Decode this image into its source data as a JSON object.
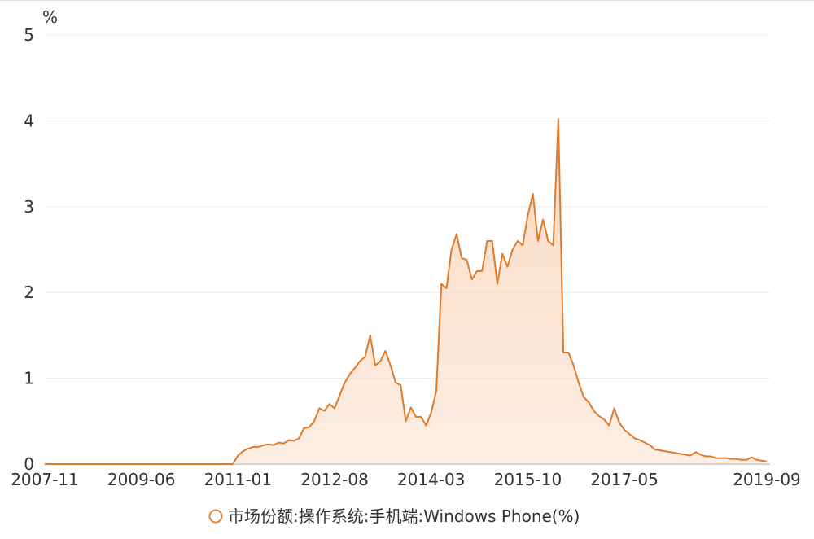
{
  "chart_data": {
    "type": "area",
    "y_unit": "%",
    "categories": [
      "2007-11",
      null,
      null,
      null,
      null,
      null,
      null,
      null,
      null,
      null,
      null,
      null,
      null,
      null,
      null,
      null,
      null,
      null,
      null,
      "2009-06",
      null,
      null,
      null,
      null,
      null,
      null,
      null,
      null,
      null,
      null,
      null,
      null,
      null,
      null,
      null,
      null,
      null,
      null,
      "2011-01",
      null,
      null,
      null,
      null,
      null,
      null,
      null,
      null,
      null,
      null,
      null,
      null,
      null,
      null,
      null,
      null,
      null,
      null,
      "2012-08",
      null,
      null,
      null,
      null,
      null,
      null,
      null,
      null,
      null,
      null,
      null,
      null,
      null,
      null,
      null,
      null,
      null,
      null,
      "2014-03",
      null,
      null,
      null,
      null,
      null,
      null,
      null,
      null,
      null,
      null,
      null,
      null,
      null,
      null,
      null,
      null,
      null,
      null,
      "2015-10",
      null,
      null,
      null,
      null,
      null,
      null,
      null,
      null,
      null,
      null,
      null,
      null,
      null,
      null,
      null,
      null,
      null,
      null,
      "2017-05",
      null,
      null,
      null,
      null,
      null,
      null,
      null,
      null,
      null,
      null,
      null,
      null,
      null,
      null,
      null,
      null,
      null,
      null,
      null,
      null,
      null,
      null,
      null,
      null,
      null,
      null,
      null,
      "2019-09"
    ],
    "series": [
      {
        "name": "市场份额:操作系统:手机端:Windows Phone(%)",
        "color": "#e07a2c",
        "values": [
          0,
          0,
          0,
          0,
          0,
          0,
          0,
          0,
          0,
          0,
          0,
          0,
          0,
          0,
          0,
          0,
          0,
          0,
          0,
          0,
          0,
          0,
          0,
          0,
          0,
          0,
          0,
          0,
          0,
          0,
          0,
          0,
          0,
          0,
          0,
          0,
          0,
          0,
          0.1,
          0.15,
          0.18,
          0.2,
          0.2,
          0.22,
          0.23,
          0.22,
          0.25,
          0.24,
          0.28,
          0.27,
          0.3,
          0.42,
          0.43,
          0.5,
          0.65,
          0.62,
          0.7,
          0.65,
          0.8,
          0.95,
          1.05,
          1.12,
          1.2,
          1.25,
          1.5,
          1.15,
          1.2,
          1.32,
          1.15,
          0.95,
          0.92,
          0.5,
          0.66,
          0.55,
          0.55,
          0.45,
          0.6,
          0.85,
          2.1,
          2.05,
          2.5,
          2.68,
          2.4,
          2.38,
          2.15,
          2.25,
          2.25,
          2.6,
          2.6,
          2.1,
          2.45,
          2.3,
          2.5,
          2.6,
          2.55,
          2.9,
          3.15,
          2.6,
          2.85,
          2.6,
          2.55,
          4.02,
          1.3,
          1.3,
          1.15,
          0.95,
          0.78,
          0.72,
          0.62,
          0.56,
          0.52,
          0.45,
          0.65,
          0.48,
          0.4,
          0.35,
          0.3,
          0.28,
          0.25,
          0.22,
          0.17,
          0.16,
          0.15,
          0.14,
          0.13,
          0.12,
          0.11,
          0.1,
          0.14,
          0.11,
          0.09,
          0.09,
          0.07,
          0.07,
          0.07,
          0.06,
          0.06,
          0.05,
          0.05,
          0.08,
          0.05,
          0.04,
          0.03
        ]
      }
    ],
    "ylim": [
      0,
      5
    ],
    "yticks": [
      0,
      1,
      2,
      3,
      4,
      5
    ],
    "grid": true
  }
}
